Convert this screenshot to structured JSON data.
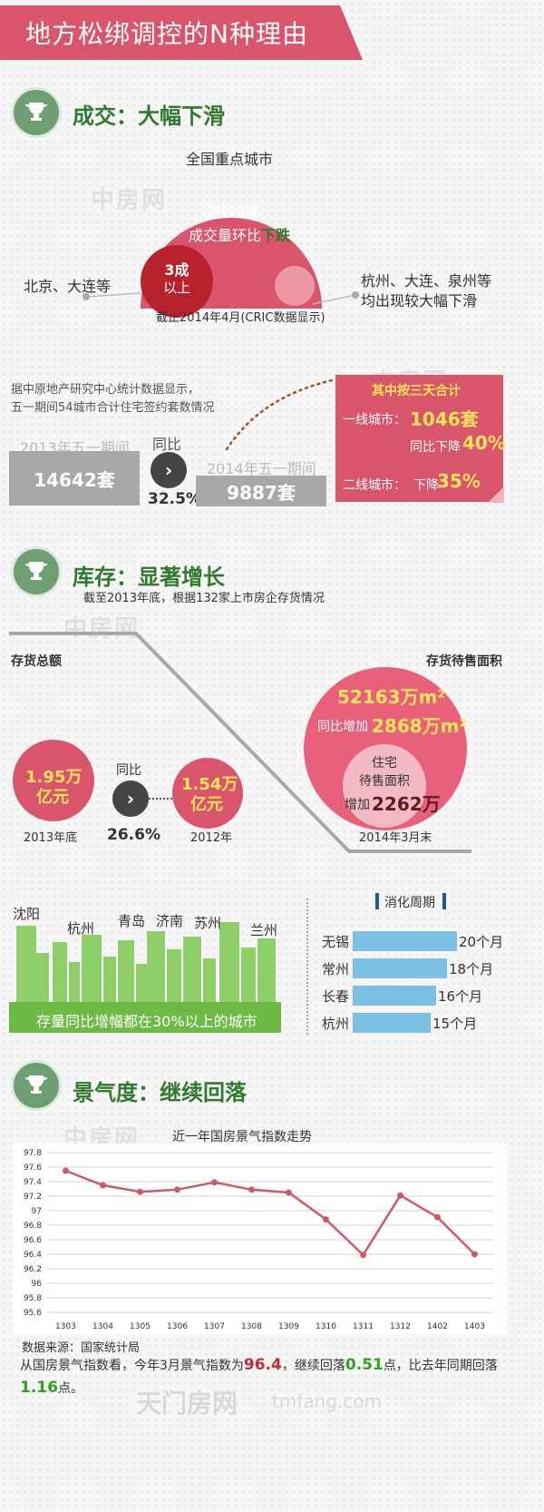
{
  "banner": {
    "title": "地方松绑调控的N种理由"
  },
  "section1": {
    "title": "成交：大幅下滑",
    "bubble_top": "全国重点城市",
    "bubble_line1": "超过6成",
    "bubble_line2_prefix": "成交量环比",
    "bubble_line2_emph": "下跌",
    "inner_line1": "3成",
    "inner_line2": "以上",
    "left_label": "北京、大连等",
    "right_label_line1": "杭州、大连、泉州等",
    "right_label_line2": "均出现较大幅下滑",
    "footnote": "截止2014年4月(CRIC数据显示)",
    "source_line1": "据中原地产研究中心统计数据显示，",
    "source_line2": "五一期间54城市合计住宅签约套数情况",
    "left_box_label": "2013年五一期间",
    "left_box_value": "14642套",
    "yoy_label": "同比",
    "yoy_value": "32.5%",
    "right_box_label": "2014年五一期间",
    "right_box_value": "9887套",
    "card_title": "其中按三天合计",
    "card_tier1_label": "一线城市：",
    "card_tier1_value": "1046套",
    "card_tier1_yoy_label": "同比下降",
    "card_tier1_yoy_value": "40%",
    "card_tier2_label": "二线城市：",
    "card_tier2_yoy_label": "下降",
    "card_tier2_yoy_value": "35%"
  },
  "section2": {
    "title": "库存：显著增长",
    "subtitle": "截至2013年底，根据132家上市房企存货情况",
    "left_heading": "存货总额",
    "right_heading": "存货待售面积",
    "circle_2013_line1": "1.95万",
    "circle_2013_line2": "亿元",
    "circle_2013_caption": "2013年底",
    "circle_2012_line1": "1.54万",
    "circle_2012_line2": "亿元",
    "circle_2012_caption": "2012年",
    "yoy_label": "同比",
    "yoy_value": "26.6%",
    "big_value": "52163万m²",
    "big_increase_label": "同比增加",
    "big_increase_value": "2868万m²",
    "inner_line1": "住宅",
    "inner_line2": "待售面积",
    "inner_increase_label": "增加",
    "inner_increase_value": "2262万",
    "big_caption": "2014年3月末",
    "cities": [
      "沈阳",
      "杭州",
      "青岛",
      "济南",
      "苏州",
      "兰州"
    ],
    "city_banner": "存量同比增幅都在30%以上的城市",
    "digest_title": "消化周期",
    "digest": [
      {
        "city": "无锡",
        "label": "20个月",
        "months": 20
      },
      {
        "city": "常州",
        "label": "18个月",
        "months": 18
      },
      {
        "city": "长春",
        "label": "16个月",
        "months": 16
      },
      {
        "city": "杭州",
        "label": "15个月",
        "months": 15
      }
    ]
  },
  "section3": {
    "title": "景气度：继续回落",
    "source": "数据来源：国家统计局",
    "summary_prefix": "从国房景气指数看，今年3月景气指数为",
    "summary_value1": "96.4",
    "summary_mid": "，继续回落",
    "summary_value2": "0.51",
    "summary_mid2": "点，比去年同期回落",
    "summary_value3": "1.16",
    "summary_suffix": "点。"
  },
  "watermarks": {
    "brand": "中房网",
    "brand_en": "FANGCHAN.COM",
    "footer": "天门房网",
    "footer_url": "tmfang.com"
  },
  "colors": {
    "accent": "#d9556b",
    "green": "#2f7a2c",
    "line": "#cc5a6a",
    "bar": "#7cc0e3"
  },
  "chart_data": {
    "type": "line",
    "title": "近一年国房景气指数走势",
    "categories": [
      "1303",
      "1304",
      "1305",
      "1306",
      "1307",
      "1308",
      "1309",
      "1310",
      "1311",
      "1312",
      "1402",
      "1403"
    ],
    "values": [
      97.55,
      97.35,
      97.26,
      97.29,
      97.39,
      97.29,
      97.25,
      96.88,
      96.39,
      97.21,
      96.91,
      96.4
    ],
    "yticks": [
      "97.8",
      "97.6",
      "97.4",
      "97.2",
      "97",
      "96.8",
      "96.6",
      "96.4",
      "96.2",
      "96",
      "95.8",
      "95.6"
    ],
    "ylim": [
      95.6,
      97.8
    ],
    "grid": true
  }
}
